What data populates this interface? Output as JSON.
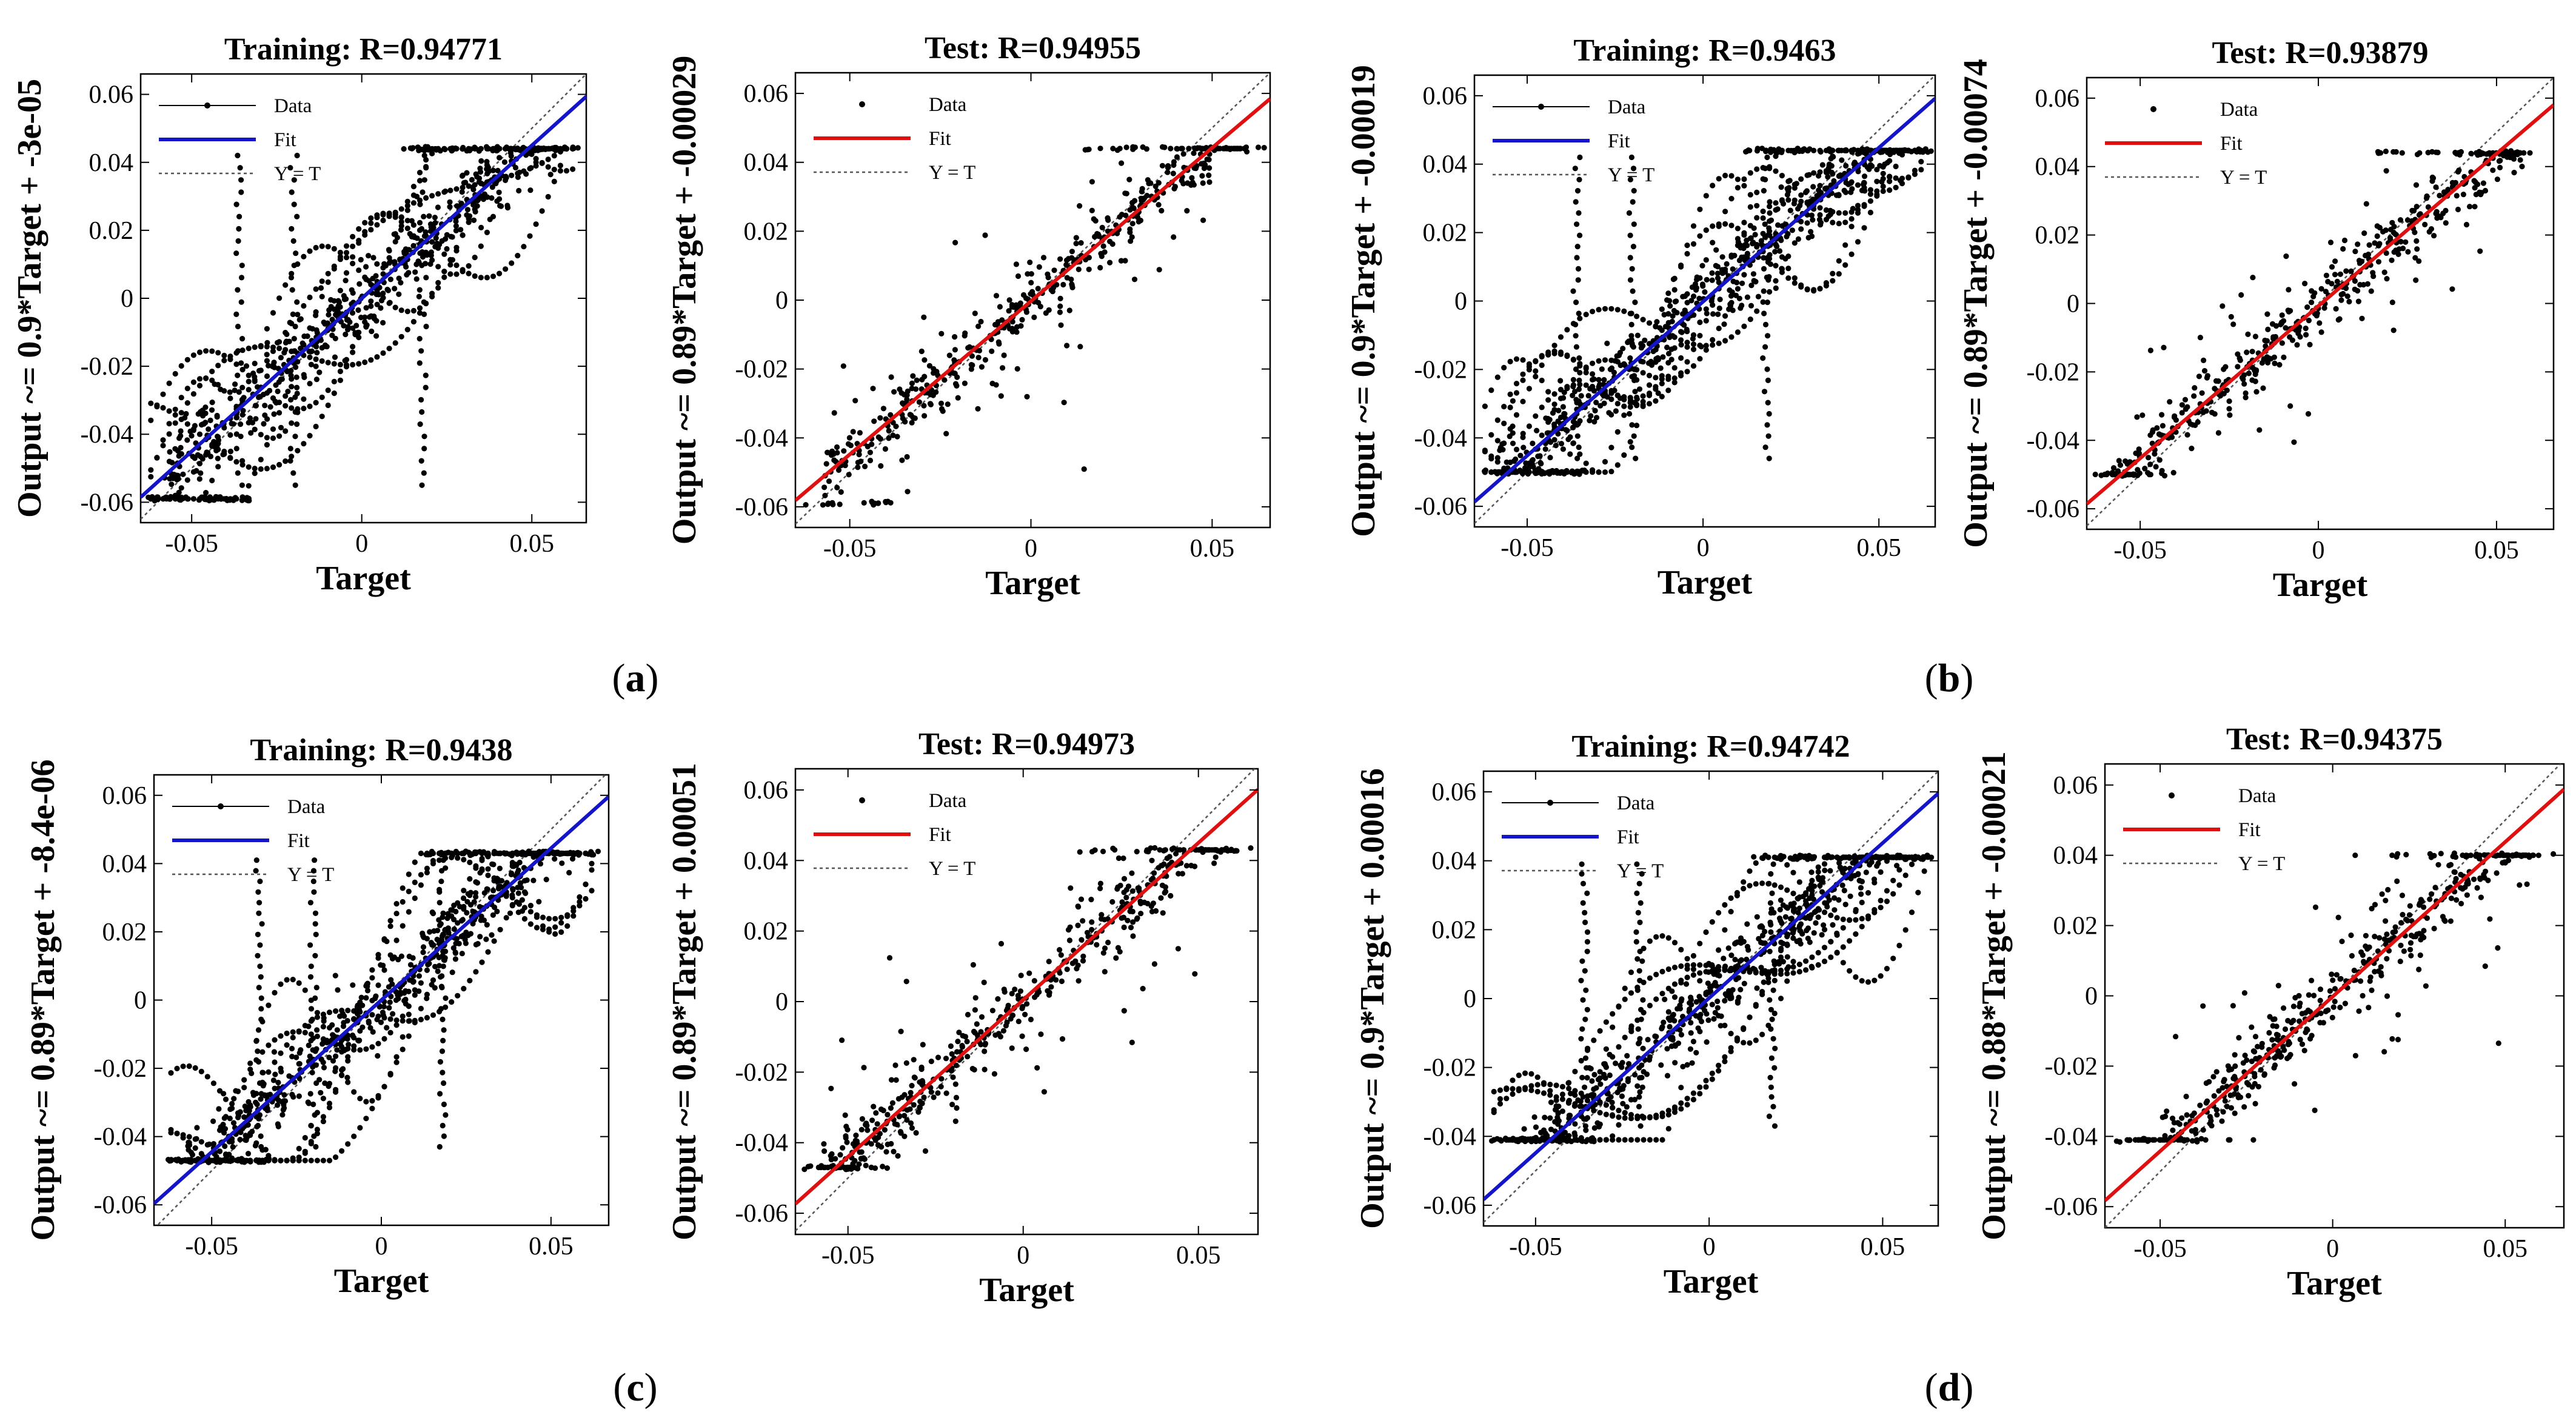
{
  "panel_labels": [
    {
      "open": "(",
      "letter": "a",
      "close": ")"
    },
    {
      "open": "(",
      "letter": "b",
      "close": ")"
    },
    {
      "open": "(",
      "letter": "c",
      "close": ")"
    },
    {
      "open": "(",
      "letter": "d",
      "close": ")"
    }
  ],
  "chart_data": [
    {
      "type": "scatter",
      "panel": "a",
      "kind": "training",
      "title": "Training: R=0.94771",
      "xlabel": "Target",
      "ylabel": "Output ~= 0.9*Target + -3e-05",
      "slope": 0.9,
      "intercept": -3e-05,
      "fit_color": "#1414c8",
      "xlim": [
        -0.065,
        0.066
      ],
      "ylim": [
        -0.066,
        0.066
      ],
      "xticks": [
        -0.05,
        0,
        0.05
      ],
      "xticklabels": [
        "-0.05",
        "0",
        "0.05"
      ],
      "yticks": [
        -0.06,
        -0.04,
        -0.02,
        0,
        0.02,
        0.04,
        0.06
      ],
      "yticklabels": [
        "-0.06",
        "-0.04",
        "-0.02",
        "0",
        "0.02",
        "0.04",
        "0.06"
      ],
      "legend": [
        "Data",
        "Fit",
        "Y = T"
      ],
      "legend_position": "top-left",
      "r": 0.94771,
      "sat_high": 0.044,
      "sat_low": -0.059
    },
    {
      "type": "scatter",
      "panel": "a",
      "kind": "test",
      "title": "Test: R=0.94955",
      "xlabel": "Target",
      "ylabel": "Output ~= 0.89*Target + -0.00029",
      "slope": 0.89,
      "intercept": -0.00029,
      "fit_color": "#e01010",
      "xlim": [
        -0.065,
        0.066
      ],
      "ylim": [
        -0.066,
        0.066
      ],
      "xticks": [
        -0.05,
        0,
        0.05
      ],
      "xticklabels": [
        "-0.05",
        "0",
        "0.05"
      ],
      "yticks": [
        -0.06,
        -0.04,
        -0.02,
        0,
        0.02,
        0.04,
        0.06
      ],
      "yticklabels": [
        "-0.06",
        "-0.04",
        "-0.02",
        "0",
        "0.02",
        "0.04",
        "0.06"
      ],
      "legend": [
        "Data",
        "Fit",
        "Y = T"
      ],
      "legend_position": "top-left",
      "r": 0.94955,
      "sat_high": 0.044,
      "sat_low": -0.059
    },
    {
      "type": "scatter",
      "panel": "b",
      "kind": "training",
      "title": "Training: R=0.9463",
      "xlabel": "Target",
      "ylabel": "Output ~= 0.9*Target + -0.00019",
      "slope": 0.9,
      "intercept": -0.00019,
      "fit_color": "#1414c8",
      "xlim": [
        -0.065,
        0.066
      ],
      "ylim": [
        -0.066,
        0.066
      ],
      "xticks": [
        -0.05,
        0,
        0.05
      ],
      "xticklabels": [
        "-0.05",
        "0",
        "0.05"
      ],
      "yticks": [
        -0.06,
        -0.04,
        -0.02,
        0,
        0.02,
        0.04,
        0.06
      ],
      "yticklabels": [
        "-0.06",
        "-0.04",
        "-0.02",
        "0",
        "0.02",
        "0.04",
        "0.06"
      ],
      "legend": [
        "Data",
        "Fit",
        "Y = T"
      ],
      "legend_position": "top-left",
      "r": 0.9463,
      "sat_high": 0.044,
      "sat_low": -0.05
    },
    {
      "type": "scatter",
      "panel": "b",
      "kind": "test",
      "title": "Test: R=0.93879",
      "xlabel": "Target",
      "ylabel": "Output ~= 0.89*Target + -0.00074",
      "slope": 0.89,
      "intercept": -0.00074,
      "fit_color": "#e01010",
      "xlim": [
        -0.065,
        0.066
      ],
      "ylim": [
        -0.066,
        0.066
      ],
      "xticks": [
        -0.05,
        0,
        0.05
      ],
      "xticklabels": [
        "-0.05",
        "0",
        "0.05"
      ],
      "yticks": [
        -0.06,
        -0.04,
        -0.02,
        0,
        0.02,
        0.04,
        0.06
      ],
      "yticklabels": [
        "-0.06",
        "-0.04",
        "-0.02",
        "0",
        "0.02",
        "0.04",
        "0.06"
      ],
      "legend": [
        "Data",
        "Fit",
        "Y = T"
      ],
      "legend_position": "top-left",
      "r": 0.93879,
      "sat_high": 0.044,
      "sat_low": -0.05
    },
    {
      "type": "scatter",
      "panel": "c",
      "kind": "training",
      "title": "Training: R=0.9438",
      "xlabel": "Target",
      "ylabel": "Output ~= 0.89*Target + -8.4e-06",
      "slope": 0.89,
      "intercept": -8.4e-06,
      "fit_color": "#1414c8",
      "xlim": [
        -0.067,
        0.067
      ],
      "ylim": [
        -0.066,
        0.066
      ],
      "xticks": [
        -0.05,
        0,
        0.05
      ],
      "xticklabels": [
        "-0.05",
        "0",
        "0.05"
      ],
      "yticks": [
        -0.06,
        -0.04,
        -0.02,
        0,
        0.02,
        0.04,
        0.06
      ],
      "yticklabels": [
        "-0.06",
        "-0.04",
        "-0.02",
        "0",
        "0.02",
        "0.04",
        "0.06"
      ],
      "legend": [
        "Data",
        "Fit",
        "Y = T"
      ],
      "legend_position": "top-left",
      "r": 0.9438,
      "sat_high": 0.043,
      "sat_low": -0.047
    },
    {
      "type": "scatter",
      "panel": "c",
      "kind": "test",
      "title": "Test: R=0.94973",
      "xlabel": "Target",
      "ylabel": "Output ~= 0.89*Target + 0.00051",
      "slope": 0.89,
      "intercept": 0.00051,
      "fit_color": "#e01010",
      "xlim": [
        -0.065,
        0.067
      ],
      "ylim": [
        -0.066,
        0.066
      ],
      "xticks": [
        -0.05,
        0,
        0.05
      ],
      "xticklabels": [
        "-0.05",
        "0",
        "0.05"
      ],
      "yticks": [
        -0.06,
        -0.04,
        -0.02,
        0,
        0.02,
        0.04,
        0.06
      ],
      "yticklabels": [
        "-0.06",
        "-0.04",
        "-0.02",
        "0",
        "0.02",
        "0.04",
        "0.06"
      ],
      "legend": [
        "Data",
        "Fit",
        "Y = T"
      ],
      "legend_position": "top-left",
      "r": 0.94973,
      "sat_high": 0.043,
      "sat_low": -0.047
    },
    {
      "type": "scatter",
      "panel": "d",
      "kind": "training",
      "title": "Training: R=0.94742",
      "xlabel": "Target",
      "ylabel": "Output ~= 0.9*Target + 0.00016",
      "slope": 0.9,
      "intercept": 0.00016,
      "fit_color": "#1414c8",
      "xlim": [
        -0.065,
        0.066
      ],
      "ylim": [
        -0.066,
        0.066
      ],
      "xticks": [
        -0.05,
        0,
        0.05
      ],
      "xticklabels": [
        "-0.05",
        "0",
        "0.05"
      ],
      "yticks": [
        -0.06,
        -0.04,
        -0.02,
        0,
        0.02,
        0.04,
        0.06
      ],
      "yticklabels": [
        "-0.06",
        "-0.04",
        "-0.02",
        "0",
        "0.02",
        "0.04",
        "0.06"
      ],
      "legend": [
        "Data",
        "Fit",
        "Y = T"
      ],
      "legend_position": "top-left",
      "r": 0.94742,
      "sat_high": 0.041,
      "sat_low": -0.041
    },
    {
      "type": "scatter",
      "panel": "d",
      "kind": "test",
      "title": "Test: R=0.94375",
      "xlabel": "Target",
      "ylabel": "Output ~= 0.88*Target + -0.00021",
      "slope": 0.88,
      "intercept": -0.00021,
      "fit_color": "#e01010",
      "xlim": [
        -0.066,
        0.067
      ],
      "ylim": [
        -0.066,
        0.066
      ],
      "xticks": [
        -0.05,
        0,
        0.05
      ],
      "xticklabels": [
        "-0.05",
        "0",
        "0.05"
      ],
      "yticks": [
        -0.06,
        -0.04,
        -0.02,
        0,
        0.02,
        0.04,
        0.06
      ],
      "yticklabels": [
        "-0.06",
        "-0.04",
        "-0.02",
        "0",
        "0.02",
        "0.04",
        "0.06"
      ],
      "legend": [
        "Data",
        "Fit",
        "Y = T"
      ],
      "legend_position": "top-left",
      "r": 0.94375,
      "sat_high": 0.04,
      "sat_low": -0.041
    }
  ]
}
